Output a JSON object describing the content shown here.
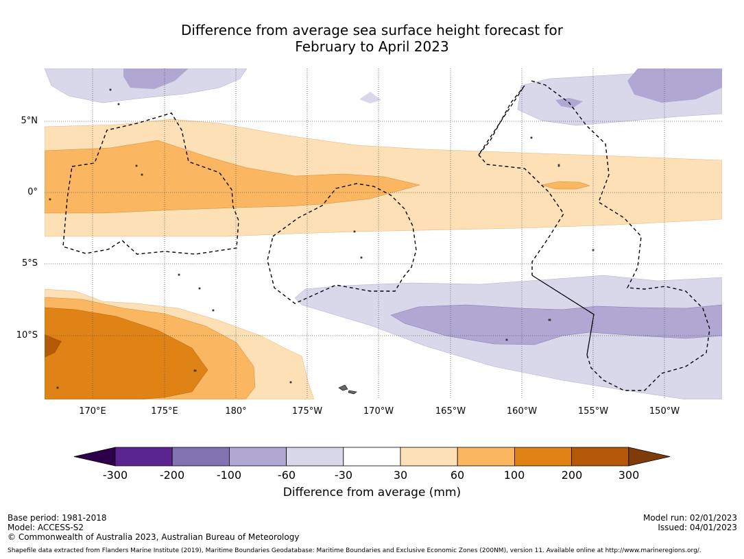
{
  "title_line1": "Difference from average sea surface height forecast for",
  "title_line2": "February to April 2023",
  "lat_labels": [
    "5°N",
    "0°",
    "5°S",
    "10°S"
  ],
  "lon_labels": [
    "170°E",
    "175°E",
    "180°",
    "175°W",
    "170°W",
    "165°W",
    "160°W",
    "155°W",
    "150°W"
  ],
  "colorbar": {
    "title": "Difference from average (mm)",
    "ticks": [
      "-300",
      "-200",
      "-100",
      "-60",
      "-30",
      "30",
      "60",
      "100",
      "200",
      "300"
    ],
    "colors": [
      "#5b2591",
      "#8373b0",
      "#b0a8d2",
      "#d8d8ea",
      "#ffffff",
      "#fde0b5",
      "#fbb661",
      "#e08317",
      "#b35907"
    ],
    "extend_low": "#2d004b",
    "extend_high": "#7f3b08"
  },
  "footer_left": {
    "base_period": "Base period: 1981-2018",
    "model": "Model: ACCESS-S2",
    "copyright": "© Commonwealth of Australia 2023, Australian Bureau of Meteorology"
  },
  "footer_right": {
    "model_run": "Model run: 02/01/2023",
    "issued": "Issued: 04/01/2023"
  },
  "footnote": "Shapefile data extracted from Flanders Marine Institute (2019), Maritime Boundaries Geodatabase: Maritime Boundaries and Exclusive Economic Zones (200NM), version 11. Available online at http://www.marineregions.org/."
}
